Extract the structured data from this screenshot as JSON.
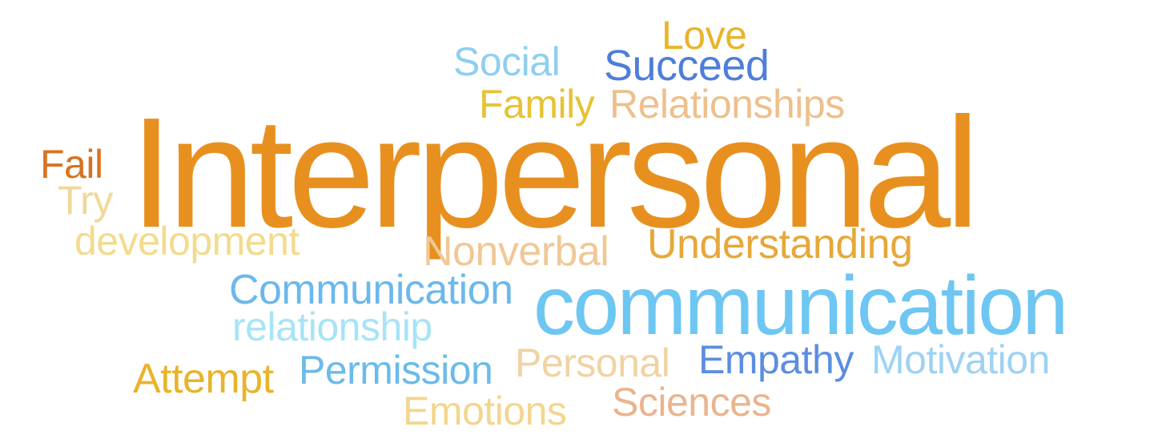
{
  "words": {
    "love": {
      "text": "Love",
      "color": "#E8B52A"
    },
    "social": {
      "text": "Social",
      "color": "#8ECFF0"
    },
    "succeed": {
      "text": "Succeed",
      "color": "#4F7ED9"
    },
    "family": {
      "text": "Family",
      "color": "#E6C335"
    },
    "relationships": {
      "text": "Relationships",
      "color": "#EDC08C"
    },
    "interpersonal": {
      "text": "Interpersonal",
      "color": "#E8901F"
    },
    "fail": {
      "text": "Fail",
      "color": "#D9721F"
    },
    "try": {
      "text": "Try",
      "color": "#F0D89A"
    },
    "development": {
      "text": "development",
      "color": "#F3DB8E"
    },
    "nonverbal": {
      "text": "Nonverbal",
      "color": "#F0C896"
    },
    "understanding": {
      "text": "Understanding",
      "color": "#E6A83A"
    },
    "comm_small": {
      "text": "Communication",
      "color": "#6CB8EB"
    },
    "comm_big": {
      "text": "communication",
      "color": "#6EC6F2"
    },
    "relationship": {
      "text": "relationship",
      "color": "#A6E4F7"
    },
    "personal": {
      "text": "Personal",
      "color": "#F0D3A4"
    },
    "empathy": {
      "text": "Empathy",
      "color": "#5B8EE0"
    },
    "motivation": {
      "text": "Motivation",
      "color": "#9ED2F3"
    },
    "attempt": {
      "text": "Attempt",
      "color": "#E8B42C"
    },
    "permission": {
      "text": "Permission",
      "color": "#6ABBEA"
    },
    "sciences": {
      "text": "Sciences",
      "color": "#EAB48F"
    },
    "emotions": {
      "text": "Emotions",
      "color": "#F3D68E"
    }
  }
}
